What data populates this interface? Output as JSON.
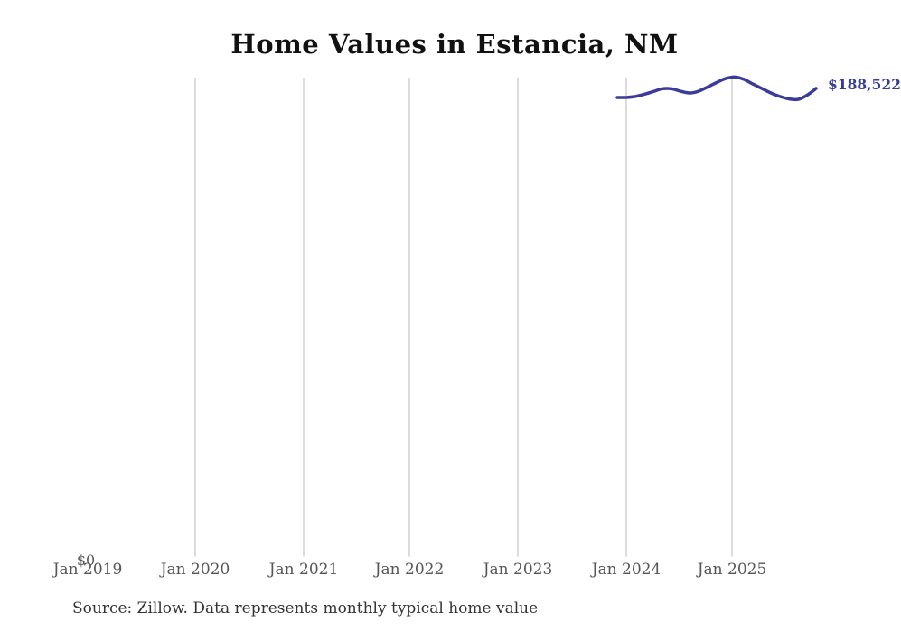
{
  "page": {
    "background": "#ffffff"
  },
  "chart": {
    "title": "Home Values in Estancia, NM",
    "y_axis": {
      "zero_label": "$0"
    },
    "x_tick_labels": [
      "Jan 2019",
      "Jan 2020",
      "Jan 2021",
      "Jan 2022",
      "Jan 2023",
      "Jan 2024",
      "Jan 2025"
    ],
    "end_value_label": "$188,522",
    "source_note": "Source: Zillow. Data represents monthly typical home value",
    "colors": {
      "line": "#3b3b9c",
      "value_label": "#343c99",
      "gridline": "#cccccc",
      "axis_text": "#555555",
      "title_text": "#111111",
      "source_text": "#333333"
    }
  },
  "chart_data": {
    "type": "line",
    "title": "Home Values in Estancia, NM",
    "xlabel": "",
    "ylabel": "",
    "x_tick_labels": [
      "Jan 2019",
      "Jan 2020",
      "Jan 2021",
      "Jan 2022",
      "Jan 2023",
      "Jan 2024",
      "Jan 2025"
    ],
    "y_tick_labels": [
      "$0"
    ],
    "ylim": [
      0,
      200000
    ],
    "grid": "vertical-only",
    "legend": "none",
    "x": [
      "Dec 2023",
      "Jan 2024",
      "Feb 2024",
      "Mar 2024",
      "Apr 2024",
      "May 2024",
      "Jun 2024",
      "Jul 2024",
      "Aug 2024",
      "Sep 2024",
      "Oct 2024",
      "Nov 2024",
      "Dec 2024",
      "Jan 2025",
      "Feb 2025",
      "Mar 2025",
      "Apr 2025",
      "May 2025",
      "Jun 2025",
      "Jul 2025",
      "Aug 2025",
      "Sep 2025",
      "Oct 2025"
    ],
    "values": [
      184900,
      184900,
      185300,
      186200,
      187300,
      188400,
      188400,
      187400,
      186700,
      187400,
      189100,
      190900,
      192500,
      193100,
      192200,
      190300,
      188500,
      186700,
      185300,
      184300,
      184100,
      185800,
      188522
    ],
    "series_name": "Typical home value",
    "annotations": [
      {
        "text": "$188,522",
        "position": "line-end"
      }
    ],
    "source": "Source: Zillow. Data represents monthly typical home value",
    "note": "values between endpoints estimated from pixel positions"
  }
}
